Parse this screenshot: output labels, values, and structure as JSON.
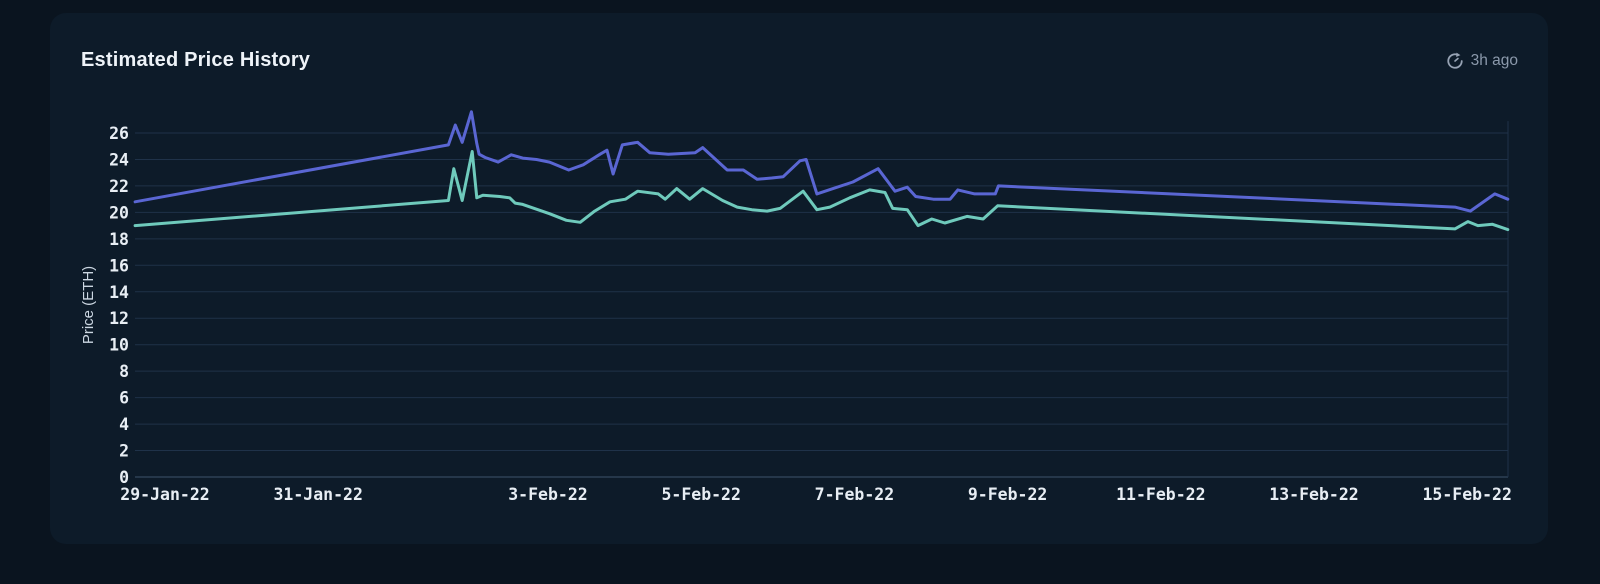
{
  "card": {
    "title": "Estimated Price History",
    "updated": "3h ago"
  },
  "colors": {
    "page_background": "#0a141f",
    "card_background": "#0d1b29",
    "gridline": "#1f3249",
    "axis_line": "#3d536b",
    "plot_border": "#1f3249",
    "title_text": "#eef3f8",
    "tick_text": "#e8eef4",
    "axis_label_text": "#ccd7e2",
    "muted_text": "#8b99ab",
    "icon": "#97a3b4",
    "line_blue": "#5a66d3",
    "line_teal": "#6fcabc"
  },
  "chart_data": {
    "type": "line",
    "title": "Estimated Price History",
    "xlabel": "",
    "ylabel": "Price (ETH)",
    "x_unit": "days since 29-Jan-22",
    "ylim": [
      0,
      28
    ],
    "grid": "horizontal",
    "legend": "none",
    "y_ticks": [
      0,
      2,
      4,
      6,
      8,
      10,
      12,
      14,
      16,
      18,
      20,
      22,
      24,
      26
    ],
    "x_ticks": [
      {
        "label": "29-Jan-22",
        "day": 0
      },
      {
        "label": "31-Jan-22",
        "day": 2
      },
      {
        "label": "3-Feb-22",
        "day": 5
      },
      {
        "label": "5-Feb-22",
        "day": 7
      },
      {
        "label": "7-Feb-22",
        "day": 9
      },
      {
        "label": "9-Feb-22",
        "day": 11
      },
      {
        "label": "11-Feb-22",
        "day": 13
      },
      {
        "label": "13-Feb-22",
        "day": 15
      },
      {
        "label": "15-Feb-22",
        "day": 17
      }
    ],
    "series": [
      {
        "name": "blue",
        "color": "#5a66d3",
        "points": [
          [
            -0.39,
            20.8
          ],
          [
            3.7,
            25.1
          ],
          [
            3.79,
            26.6
          ],
          [
            3.88,
            25.3
          ],
          [
            4.0,
            27.6
          ],
          [
            4.07,
            25.2
          ],
          [
            4.1,
            24.4
          ],
          [
            4.18,
            24.15
          ],
          [
            4.35,
            23.8
          ],
          [
            4.52,
            24.35
          ],
          [
            4.67,
            24.1
          ],
          [
            4.85,
            24.0
          ],
          [
            5.02,
            23.8
          ],
          [
            5.27,
            23.2
          ],
          [
            5.46,
            23.6
          ],
          [
            5.68,
            24.4
          ],
          [
            5.77,
            24.7
          ],
          [
            5.85,
            22.9
          ],
          [
            5.97,
            25.1
          ],
          [
            6.17,
            25.3
          ],
          [
            6.33,
            24.5
          ],
          [
            6.57,
            24.4
          ],
          [
            6.92,
            24.5
          ],
          [
            7.02,
            24.9
          ],
          [
            7.34,
            23.2
          ],
          [
            7.55,
            23.2
          ],
          [
            7.73,
            22.5
          ],
          [
            7.92,
            22.6
          ],
          [
            8.07,
            22.7
          ],
          [
            8.29,
            23.9
          ],
          [
            8.37,
            24.0
          ],
          [
            8.51,
            21.4
          ],
          [
            8.72,
            21.8
          ],
          [
            8.98,
            22.3
          ],
          [
            9.31,
            23.3
          ],
          [
            9.53,
            21.6
          ],
          [
            9.69,
            21.9
          ],
          [
            9.8,
            21.2
          ],
          [
            10.03,
            21.0
          ],
          [
            10.25,
            21.0
          ],
          [
            10.35,
            21.7
          ],
          [
            10.57,
            21.4
          ],
          [
            10.84,
            21.4
          ],
          [
            10.88,
            22.0
          ],
          [
            16.84,
            20.4
          ],
          [
            17.04,
            20.1
          ],
          [
            17.36,
            21.4
          ],
          [
            17.53,
            21.0
          ]
        ]
      },
      {
        "name": "teal",
        "color": "#6fcabc",
        "points": [
          [
            -0.39,
            19.0
          ],
          [
            3.7,
            20.9
          ],
          [
            3.77,
            23.3
          ],
          [
            3.88,
            20.9
          ],
          [
            4.01,
            24.6
          ],
          [
            4.07,
            21.1
          ],
          [
            4.15,
            21.3
          ],
          [
            4.37,
            21.2
          ],
          [
            4.5,
            21.1
          ],
          [
            4.57,
            20.7
          ],
          [
            4.67,
            20.6
          ],
          [
            5.02,
            19.9
          ],
          [
            5.24,
            19.4
          ],
          [
            5.42,
            19.25
          ],
          [
            5.61,
            20.1
          ],
          [
            5.81,
            20.8
          ],
          [
            6.01,
            21.0
          ],
          [
            6.17,
            21.6
          ],
          [
            6.44,
            21.4
          ],
          [
            6.53,
            21.0
          ],
          [
            6.68,
            21.8
          ],
          [
            6.85,
            21.0
          ],
          [
            7.02,
            21.8
          ],
          [
            7.28,
            20.9
          ],
          [
            7.47,
            20.4
          ],
          [
            7.66,
            20.2
          ],
          [
            7.86,
            20.1
          ],
          [
            8.03,
            20.3
          ],
          [
            8.33,
            21.6
          ],
          [
            8.51,
            20.2
          ],
          [
            8.68,
            20.4
          ],
          [
            8.94,
            21.1
          ],
          [
            9.2,
            21.7
          ],
          [
            9.4,
            21.5
          ],
          [
            9.5,
            20.3
          ],
          [
            9.69,
            20.2
          ],
          [
            9.83,
            19.0
          ],
          [
            10.01,
            19.5
          ],
          [
            10.18,
            19.2
          ],
          [
            10.47,
            19.7
          ],
          [
            10.68,
            19.5
          ],
          [
            10.87,
            20.5
          ],
          [
            16.84,
            18.75
          ],
          [
            17.01,
            19.3
          ],
          [
            17.14,
            19.0
          ],
          [
            17.33,
            19.1
          ],
          [
            17.53,
            18.7
          ]
        ]
      }
    ]
  }
}
